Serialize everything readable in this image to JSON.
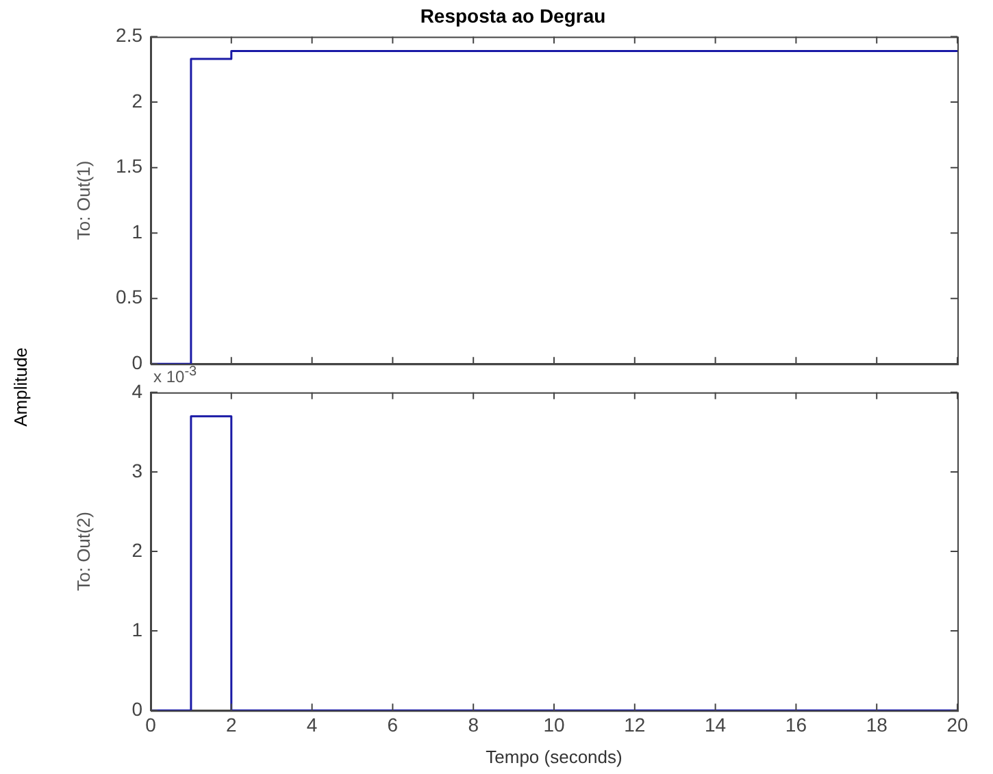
{
  "chart_data": [
    {
      "type": "step",
      "title": "Resposta ao Degrau",
      "ylabel": "To: Out(1)",
      "annotations": [
        "Amplitude"
      ],
      "x": [
        0,
        1,
        2,
        20
      ],
      "series": [
        {
          "color": "#1a1aa6",
          "values": [
            0,
            2.33,
            2.39,
            2.39
          ]
        }
      ],
      "xlim": [
        0,
        20
      ],
      "xticks": [
        0,
        2,
        4,
        6,
        8,
        10,
        12,
        14,
        16,
        18,
        20
      ],
      "ylim": [
        0,
        2.5
      ],
      "yticks": [
        0,
        0.5,
        1,
        1.5,
        2,
        2.5
      ],
      "tick_labels": "y",
      "grid": false,
      "legend": false
    },
    {
      "type": "step",
      "xlabel": "Tempo (seconds)",
      "ylabel": "To: Out(2)",
      "annotations": [
        "x 10$^{-3}$"
      ],
      "x": [
        0,
        1,
        2,
        20
      ],
      "series": [
        {
          "color": "#1a1aa6",
          "values": [
            0,
            3.7,
            0,
            0
          ]
        }
      ],
      "xlim": [
        0,
        20
      ],
      "xticks": [
        0,
        2,
        4,
        6,
        8,
        10,
        12,
        14,
        16,
        18,
        20
      ],
      "ylim": [
        0,
        4
      ],
      "yticks": [
        0,
        1,
        2,
        3,
        4
      ],
      "grid": false,
      "legend": false
    }
  ]
}
